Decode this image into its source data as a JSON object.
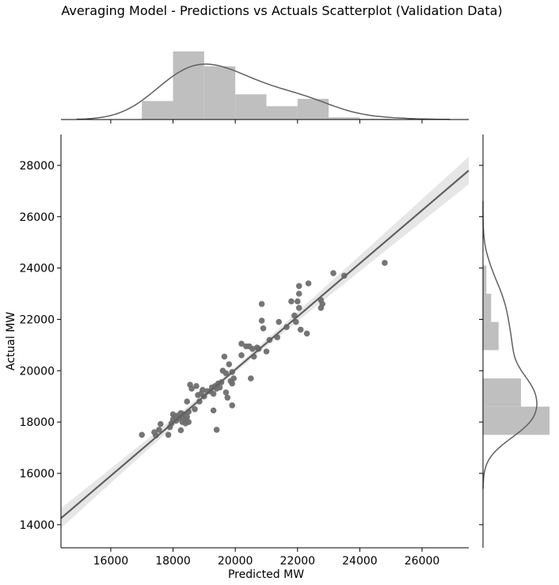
{
  "chart_data": {
    "type": "scatter",
    "title": "Averaging Model - Predictions vs Actuals Scatterplot (Validation Data)",
    "xlabel": "Predicted MW",
    "ylabel": "Actual MW",
    "xlim": [
      14400,
      27500
    ],
    "ylim": [
      13100,
      29200
    ],
    "xticks": [
      "16000",
      "18000",
      "20000",
      "22000",
      "24000",
      "26000"
    ],
    "yticks": [
      "14000",
      "16000",
      "18000",
      "20000",
      "22000",
      "24000",
      "26000",
      "28000"
    ],
    "colors": {
      "points": "#6e6e6e",
      "line": "#606060",
      "band": "#e6e6e6",
      "hist": "#bfbfbf",
      "kde": "#606060"
    },
    "points": [
      [
        17000,
        17500
      ],
      [
        17400,
        17600
      ],
      [
        17450,
        17480
      ],
      [
        17550,
        17700
      ],
      [
        17600,
        17920
      ],
      [
        17850,
        17500
      ],
      [
        17900,
        17800
      ],
      [
        17950,
        17950
      ],
      [
        18000,
        18100
      ],
      [
        18000,
        18300
      ],
      [
        18050,
        18200
      ],
      [
        18100,
        18050
      ],
      [
        18150,
        18250
      ],
      [
        18200,
        18150
      ],
      [
        18250,
        18350
      ],
      [
        18250,
        17680
      ],
      [
        18300,
        18000
      ],
      [
        18300,
        18200
      ],
      [
        18350,
        18300
      ],
      [
        18400,
        18100
      ],
      [
        18400,
        17950
      ],
      [
        18450,
        18200
      ],
      [
        18450,
        18800
      ],
      [
        18500,
        18000
      ],
      [
        18500,
        18400
      ],
      [
        18550,
        19450
      ],
      [
        18600,
        19300
      ],
      [
        18700,
        18500
      ],
      [
        18750,
        19400
      ],
      [
        18800,
        19050
      ],
      [
        18850,
        18800
      ],
      [
        18900,
        19100
      ],
      [
        18950,
        19250
      ],
      [
        19000,
        19000
      ],
      [
        19100,
        19200
      ],
      [
        19200,
        19200
      ],
      [
        19250,
        19350
      ],
      [
        19300,
        19100
      ],
      [
        19300,
        18450
      ],
      [
        19350,
        19400
      ],
      [
        19400,
        19300
      ],
      [
        19400,
        17700
      ],
      [
        19450,
        19500
      ],
      [
        19500,
        19350
      ],
      [
        19550,
        19550
      ],
      [
        19600,
        20000
      ],
      [
        19650,
        20550
      ],
      [
        19700,
        19900
      ],
      [
        19700,
        19150
      ],
      [
        19750,
        18950
      ],
      [
        19800,
        20250
      ],
      [
        19850,
        19600
      ],
      [
        19900,
        19500
      ],
      [
        19900,
        18650
      ],
      [
        19900,
        19950
      ],
      [
        19950,
        19700
      ],
      [
        20200,
        20600
      ],
      [
        20200,
        21050
      ],
      [
        20350,
        20950
      ],
      [
        20450,
        20950
      ],
      [
        20500,
        19700
      ],
      [
        20550,
        20850
      ],
      [
        20600,
        20550
      ],
      [
        20700,
        20900
      ],
      [
        20750,
        20850
      ],
      [
        20850,
        21950
      ],
      [
        20850,
        22600
      ],
      [
        20900,
        21650
      ],
      [
        21000,
        20750
      ],
      [
        21100,
        21200
      ],
      [
        21350,
        21300
      ],
      [
        21400,
        21900
      ],
      [
        21650,
        21700
      ],
      [
        21800,
        22700
      ],
      [
        21900,
        22150
      ],
      [
        21950,
        21900
      ],
      [
        22000,
        22700
      ],
      [
        22050,
        22450
      ],
      [
        22050,
        23000
      ],
      [
        22050,
        23300
      ],
      [
        22100,
        21600
      ],
      [
        22300,
        21450
      ],
      [
        22350,
        23400
      ],
      [
        22750,
        22450
      ],
      [
        22750,
        22750
      ],
      [
        22800,
        22600
      ],
      [
        23150,
        23800
      ],
      [
        23500,
        23700
      ],
      [
        24800,
        24200
      ]
    ],
    "regression": {
      "x": [
        14400,
        27500
      ],
      "y": [
        14250,
        27800
      ]
    },
    "x_hist": {
      "bins": [
        17000,
        18000,
        19000,
        20000,
        21000,
        22000,
        23000,
        24000,
        25000
      ],
      "density": [
        0.25,
        0.92,
        0.72,
        0.34,
        0.18,
        0.28,
        0.03,
        0.01
      ]
    },
    "y_hist": {
      "bins": [
        17500,
        18600,
        19700,
        20800,
        21900,
        23000,
        24100
      ],
      "density": [
        0.98,
        0.56,
        0.0,
        0.23,
        0.12,
        0.05
      ]
    }
  }
}
